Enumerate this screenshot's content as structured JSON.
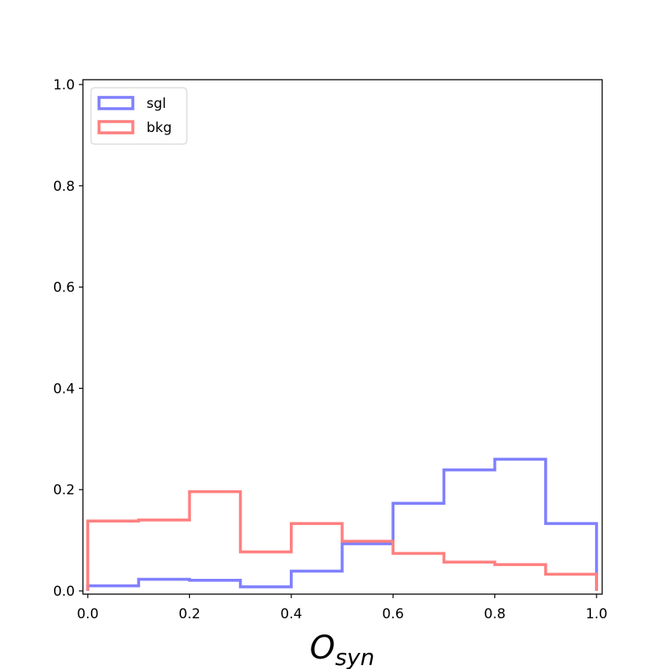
{
  "chart_data": {
    "type": "histogram-step",
    "title": "",
    "xlabel": {
      "main": "O",
      "sub": "syn"
    },
    "ylabel": "",
    "xlim": [
      0.0,
      1.0
    ],
    "ylim": [
      0.0,
      1.0
    ],
    "xticks": [
      "0.0",
      "0.2",
      "0.4",
      "0.6",
      "0.8",
      "1.0"
    ],
    "yticks": [
      "0.0",
      "0.2",
      "0.4",
      "0.6",
      "0.8",
      "1.0"
    ],
    "grid": false,
    "legend_position": "top-left",
    "bin_edges": [
      0.0,
      0.1,
      0.2,
      0.3,
      0.4,
      0.5,
      0.6,
      0.7,
      0.8,
      0.9,
      1.0
    ],
    "series": [
      {
        "name": "sgl",
        "color": "#8080ff",
        "values": [
          0.01,
          0.023,
          0.021,
          0.008,
          0.039,
          0.093,
          0.173,
          0.239,
          0.26,
          0.133
        ]
      },
      {
        "name": "bkg",
        "color": "#ff8080",
        "values": [
          0.138,
          0.14,
          0.196,
          0.077,
          0.133,
          0.098,
          0.074,
          0.057,
          0.052,
          0.033
        ]
      }
    ]
  }
}
